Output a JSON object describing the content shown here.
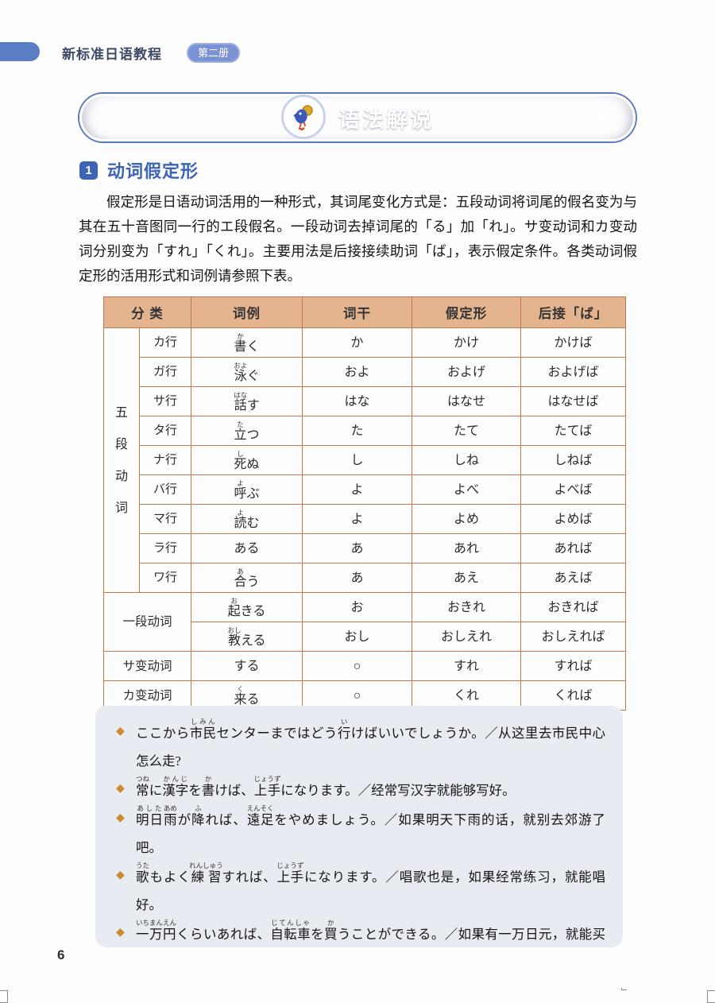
{
  "header": {
    "series_title": "新标准日语教程",
    "volume_badge": "第二册"
  },
  "banner": {
    "title": "语法解说",
    "mascot": "bird-mascot",
    "audio": "speaker"
  },
  "section": {
    "number": "1",
    "title": "动词假定形",
    "paragraph": "假定形是日语动词活用的一种形式，其词尾变化方式是：五段动词将词尾的假名变为与其在五十音图同一行的エ段假名。一段动词去掉词尾的「る」加「れ」。サ变动词和カ变动词分别变为「すれ」「くれ」。主要用法是后接接续助词「ば」，表示假定条件。各类动词假定形的活用形式和词例请参照下表。"
  },
  "table": {
    "headers": [
      "分 类",
      "词例",
      "词干",
      "假定形",
      "后接「ば」"
    ],
    "groups": [
      {
        "label": "五段动词",
        "vertical": true,
        "rows": [
          {
            "gyo": "カ行",
            "example": [
              {
                "b": "書",
                "r": "か"
              },
              {
                "t": "く"
              }
            ],
            "stem": "か",
            "katei": "かけ",
            "ba": "かけば"
          },
          {
            "gyo": "ガ行",
            "example": [
              {
                "b": "泳",
                "r": "およ"
              },
              {
                "t": "ぐ"
              }
            ],
            "stem": "およ",
            "katei": "およげ",
            "ba": "およげば"
          },
          {
            "gyo": "サ行",
            "example": [
              {
                "b": "話",
                "r": "はな"
              },
              {
                "t": "す"
              }
            ],
            "stem": "はな",
            "katei": "はなせ",
            "ba": "はなせば"
          },
          {
            "gyo": "タ行",
            "example": [
              {
                "b": "立",
                "r": "た"
              },
              {
                "t": "つ"
              }
            ],
            "stem": "た",
            "katei": "たて",
            "ba": "たてば"
          },
          {
            "gyo": "ナ行",
            "example": [
              {
                "b": "死",
                "r": "し"
              },
              {
                "t": "ぬ"
              }
            ],
            "stem": "し",
            "katei": "しね",
            "ba": "しねば"
          },
          {
            "gyo": "バ行",
            "example": [
              {
                "b": "呼",
                "r": "よ"
              },
              {
                "t": "ぶ"
              }
            ],
            "stem": "よ",
            "katei": "よべ",
            "ba": "よべば"
          },
          {
            "gyo": "マ行",
            "example": [
              {
                "b": "読",
                "r": "よ"
              },
              {
                "t": "む"
              }
            ],
            "stem": "よ",
            "katei": "よめ",
            "ba": "よめば"
          },
          {
            "gyo": "ラ行",
            "example": [
              {
                "t": "ある"
              }
            ],
            "stem": "あ",
            "katei": "あれ",
            "ba": "あれば"
          },
          {
            "gyo": "ワ行",
            "example": [
              {
                "b": "合",
                "r": "あ"
              },
              {
                "t": "う"
              }
            ],
            "stem": "あ",
            "katei": "あえ",
            "ba": "あえば"
          }
        ]
      },
      {
        "label": "一段动词",
        "vertical": false,
        "rows": [
          {
            "example": [
              {
                "b": "起",
                "r": "お"
              },
              {
                "t": "きる"
              }
            ],
            "stem": "お",
            "katei": "おきれ",
            "ba": "おきれば"
          },
          {
            "example": [
              {
                "b": "教",
                "r": "おし"
              },
              {
                "t": "える"
              }
            ],
            "stem": "おし",
            "katei": "おしえれ",
            "ba": "おしえれば"
          }
        ]
      },
      {
        "label": "サ变动词",
        "vertical": false,
        "rows": [
          {
            "example": [
              {
                "t": "する"
              }
            ],
            "stem": "○",
            "katei": "すれ",
            "ba": "すれば"
          }
        ]
      },
      {
        "label": "カ变动词",
        "vertical": false,
        "rows": [
          {
            "example": [
              {
                "b": "来",
                "r": "く"
              },
              {
                "t": "る"
              }
            ],
            "stem": "○",
            "katei": "くれ",
            "ba": "くれば"
          }
        ]
      }
    ]
  },
  "examples": {
    "bullet": "◆",
    "separator": "／",
    "items": [
      {
        "jp": [
          {
            "t": "ここから"
          },
          {
            "b": "市民",
            "r": "しみん"
          },
          {
            "t": "センターまではどう"
          },
          {
            "b": "行",
            "r": "い"
          },
          {
            "t": "けばいいでしょうか。"
          }
        ],
        "zh": "从这里去市民中心怎么走?"
      },
      {
        "jp": [
          {
            "b": "常",
            "r": "つね"
          },
          {
            "t": "に"
          },
          {
            "b": "漢字",
            "r": "かんじ"
          },
          {
            "t": "を"
          },
          {
            "b": "書",
            "r": "か"
          },
          {
            "t": "けば、"
          },
          {
            "b": "上手",
            "r": "じょうず"
          },
          {
            "t": "になります。"
          }
        ],
        "zh": "经常写汉字就能够写好。"
      },
      {
        "jp": [
          {
            "b": "明日",
            "r": "あした"
          },
          {
            "b": "雨",
            "r": "あめ"
          },
          {
            "t": "が"
          },
          {
            "b": "降",
            "r": "ふ"
          },
          {
            "t": "れば、"
          },
          {
            "b": "遠足",
            "r": "えんそく"
          },
          {
            "t": "をやめましょう。"
          }
        ],
        "zh": "如果明天下雨的话，就别去郊游了吧。"
      },
      {
        "jp": [
          {
            "b": "歌",
            "r": "うた"
          },
          {
            "t": "もよく"
          },
          {
            "b": "練習",
            "r": "れんしゅう"
          },
          {
            "t": "すれば、"
          },
          {
            "b": "上手",
            "r": "じょうず"
          },
          {
            "t": "になります。"
          }
        ],
        "zh": "唱歌也是，如果经常练习，就能唱好。"
      },
      {
        "jp": [
          {
            "b": "一万円",
            "r": "いちまんえん"
          },
          {
            "t": "くらいあれば、"
          },
          {
            "b": "自転車",
            "r": "じてんしゃ"
          },
          {
            "t": "を"
          },
          {
            "b": "買",
            "r": "か"
          },
          {
            "t": "うことができる。"
          }
        ],
        "zh": "如果有一万日元，就能买自行车了。"
      }
    ]
  },
  "page": {
    "number": "6"
  },
  "colors": {
    "accent_blue": "#3c63b5",
    "banner_blue": "#5b77c4",
    "table_border": "#c5794a",
    "table_header_bg": "#e3b48e",
    "example_box_bg": "#e9ebf3",
    "bullet_orange": "#ca8a2e"
  }
}
